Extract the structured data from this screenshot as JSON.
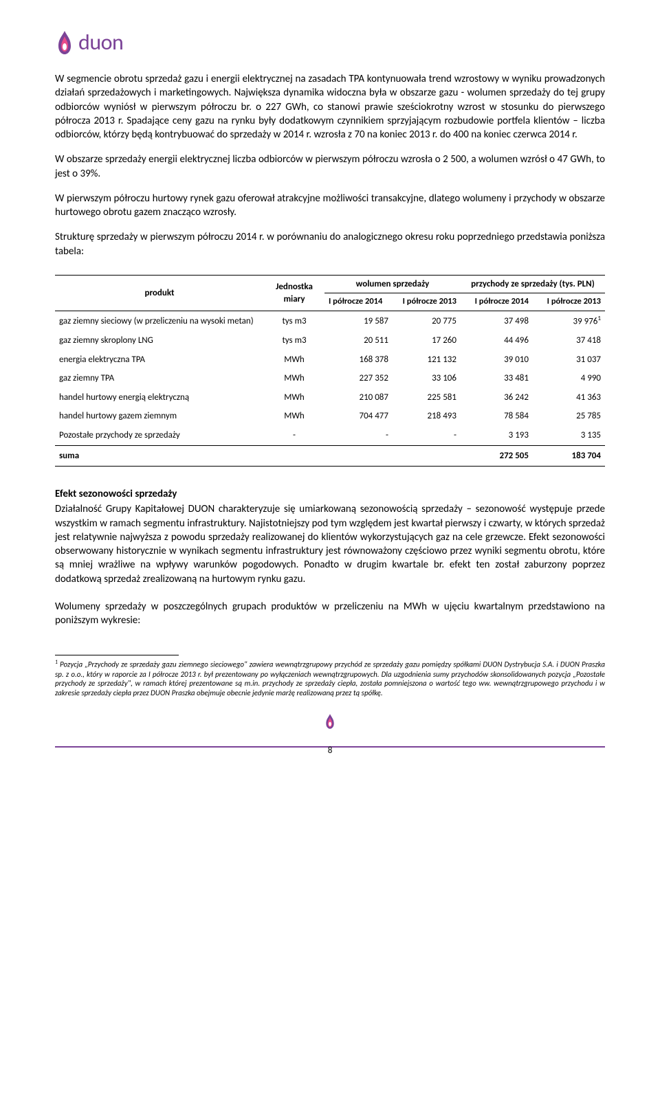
{
  "brand": {
    "name": "duon",
    "color": "#7b4397",
    "flame_inner": "#e94b8a",
    "flame_outer": "#7b4397"
  },
  "paragraphs": {
    "p1": "W segmencie obrotu sprzedaż gazu i energii elektrycznej na zasadach TPA kontynuowała trend wzrostowy w wyniku prowadzonych działań sprzedażowych i marketingowych. Największa dynamika widoczna była w obszarze gazu - wolumen sprzedaży do tej grupy odbiorców wyniósł w pierwszym półroczu br. o 227 GWh, co stanowi prawie sześciokrotny wzrost w stosunku do pierwszego półrocza 2013 r. Spadające ceny gazu na rynku były dodatkowym czynnikiem sprzyjającym rozbudowie portfela klientów – liczba odbiorców, którzy będą kontrybuować do sprzedaży w 2014 r. wzrosła z 70 na koniec 2013 r. do 400 na koniec czerwca 2014 r.",
    "p2": "W obszarze sprzedaży energii elektrycznej liczba odbiorców w pierwszym półroczu wzrosła o 2 500, a wolumen wzrósł o 47 GWh, to jest o 39%.",
    "p3": "W pierwszym półroczu hurtowy rynek gazu oferował atrakcyjne możliwości transakcyjne, dlatego wolumeny i przychody w obszarze hurtowego obrotu gazem znacząco wzrosły.",
    "p4": "Strukturę sprzedaży w pierwszym półroczu 2014 r. w porównaniu do analogicznego okresu roku poprzedniego przedstawia poniższa tabela:",
    "p5": "Działalność Grupy Kapitałowej DUON charakteryzuje się umiarkowaną sezonowością sprzedaży – sezonowość występuje przede wszystkim w ramach segmentu infrastruktury. Najistotniejszy pod tym względem jest kwartał pierwszy i czwarty, w których sprzedaż jest relatywnie najwyższa z powodu sprzedaży realizowanej do klientów wykorzystujących gaz na cele grzewcze. Efekt sezonowości obserwowany historycznie w wynikach segmentu infrastruktury jest równoważony częściowo przez wyniki segmentu obrotu, które są mniej wrażliwe na wpływy warunków pogodowych. Ponadto w drugim kwartale br. efekt ten został zaburzony poprzez dodatkową sprzedaż zrealizowaną na hurtowym rynku gazu.",
    "p6": "Wolumeny sprzedaży w poszczególnych grupach produktów w przeliczeniu na MWh w ujęciu kwartalnym przedstawiono na poniższym wykresie:"
  },
  "section_title": "Efekt sezonowości sprzedaży",
  "table": {
    "headers": {
      "product": "produkt",
      "unit": "Jednostka miary",
      "volume": "wolumen sprzedaży",
      "revenue": "przychody ze sprzedaży (tys. PLN)",
      "h1": "I półrocze 2014",
      "h2": "I półrocze 2013",
      "h3": "I półrocze 2014",
      "h4": "I półrocze 2013"
    },
    "rows": [
      {
        "name": "gaz ziemny sieciowy (w przeliczeniu na wysoki metan)",
        "unit": "tys m3",
        "v1": "19 587",
        "v2": "20 775",
        "r1": "37 498",
        "r2": "39 976",
        "sup": "1"
      },
      {
        "name": "gaz ziemny skroplony LNG",
        "unit": "tys m3",
        "v1": "20 511",
        "v2": "17 260",
        "r1": "44 496",
        "r2": "37 418"
      },
      {
        "name": "energia elektryczna TPA",
        "unit": "MWh",
        "v1": "168 378",
        "v2": "121 132",
        "r1": "39 010",
        "r2": "31 037"
      },
      {
        "name": "gaz ziemny TPA",
        "unit": "MWh",
        "v1": "227 352",
        "v2": "33 106",
        "r1": "33 481",
        "r2": "4 990"
      },
      {
        "name": "handel hurtowy energią elektryczną",
        "unit": "MWh",
        "v1": "210 087",
        "v2": "225 581",
        "r1": "36 242",
        "r2": "41 363"
      },
      {
        "name": "handel hurtowy gazem ziemnym",
        "unit": "MWh",
        "v1": "704 477",
        "v2": "218 493",
        "r1": "78 584",
        "r2": "25 785"
      },
      {
        "name": "Pozostałe przychody ze sprzedaży",
        "unit": "-",
        "v1": "-",
        "v2": "-",
        "r1": "3 193",
        "r2": "3 135"
      }
    ],
    "sum": {
      "label": "suma",
      "r1": "272 505",
      "r2": "183 704"
    }
  },
  "footnote": {
    "marker": "1",
    "text": "Pozycja „Przychody ze sprzedaży gazu ziemnego sieciowego\" zawiera wewnątrzgrupowy przychód ze sprzedaży gazu pomiędzy spółkami DUON Dystrybucja S.A. i DUON Praszka sp. z o.o., który w raporcie za I półrocze 2013 r. był prezentowany po wyłączeniach wewnątrzgrupowych. Dla uzgodnienia sumy przychodów skonsolidowanych pozycja „Pozostałe przychody ze sprzedaży\", w ramach której prezentowane są m.in. przychody ze sprzedaży ciepła, została pomniejszona o wartość tego ww. wewnątrzgrupowego przychodu i w zakresie sprzedaży ciepła przez DUON Praszka obejmuje obecnie jedynie marżę realizowaną przez tą spółkę."
  },
  "page_number": "8"
}
